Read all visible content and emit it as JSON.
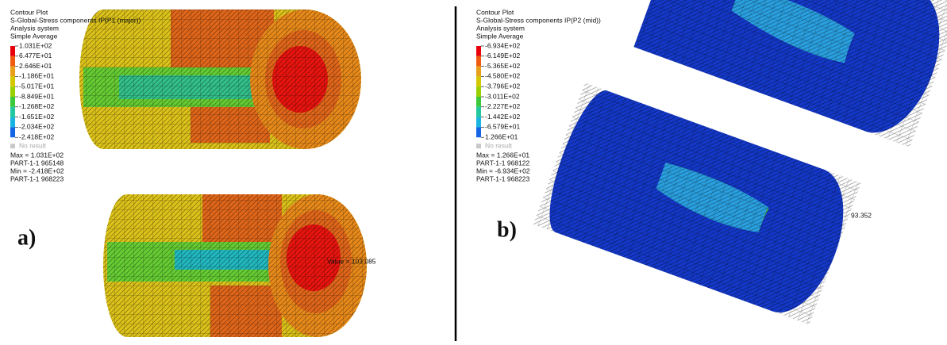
{
  "panels": [
    {
      "label": "a)",
      "legend": {
        "lines": [
          "Contour Plot",
          "S-Global-Stress components IP(P1 (major))",
          "Analysis system",
          "Simple Average"
        ],
        "levels": [
          "1.031E+02",
          "6.477E+01",
          "2.646E+01",
          "-1.186E+01",
          "-5.017E+01",
          "-8.849E+01",
          "-1.268E+02",
          "-1.651E+02",
          "-2.034E+02",
          "-2.418E+02"
        ],
        "no_result": "No result",
        "summary": [
          "Max = 1.031E+02",
          "PART-1-1 965148",
          "Min = -2.418E+02",
          "PART-1-1 968223"
        ]
      },
      "annotation": "Value = 103.085"
    },
    {
      "label": "b)",
      "legend": {
        "lines": [
          "Contour Plot",
          "S-Global-Stress components IP(P2 (mid))",
          "Analysis system",
          "Simple Average"
        ],
        "levels": [
          "-6.934E+02",
          "-6.149E+02",
          "-5.365E+02",
          "-4.580E+02",
          "-3.796E+02",
          "-3.011E+02",
          "-2.227E+02",
          "-1.442E+02",
          "-6.579E+01",
          "1.266E+01"
        ],
        "no_result": "No result",
        "summary": [
          "Max = 1.266E+01",
          "PART-1-1 968122",
          "Min = -6.934E+02",
          "PART-1-1 968223"
        ]
      },
      "annotation": "93.352"
    }
  ]
}
